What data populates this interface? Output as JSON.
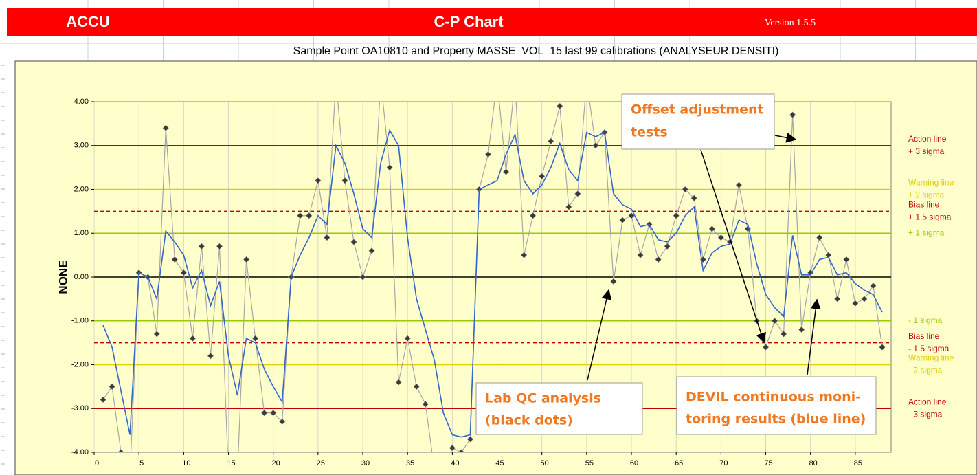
{
  "header": {
    "left": "ACCU",
    "title": "C-P Chart",
    "version": "Version 1.5.5"
  },
  "chart_data": {
    "type": "line",
    "subtitle": "Sample Point OA10810 and Property MASSE_VOL_15 last 99 calibrations (ANALYSEUR DENSITI)",
    "y_label": "NONE",
    "x": [
      1,
      2,
      3,
      4,
      5,
      6,
      7,
      8,
      9,
      10,
      11,
      12,
      13,
      14,
      15,
      16,
      17,
      18,
      19,
      20,
      21,
      22,
      23,
      24,
      25,
      26,
      27,
      28,
      29,
      30,
      31,
      32,
      33,
      34,
      35,
      36,
      37,
      38,
      39,
      40,
      41,
      42,
      43,
      44,
      45,
      46,
      47,
      48,
      49,
      50,
      51,
      52,
      53,
      54,
      55,
      56,
      57,
      58,
      59,
      60,
      61,
      62,
      63,
      64,
      65,
      66,
      67,
      68,
      69,
      70,
      71,
      72,
      73,
      74,
      75,
      76,
      77,
      78,
      79,
      80,
      81,
      82,
      83,
      84,
      85,
      86,
      87,
      88
    ],
    "series": [
      {
        "color": "#a6a6a6",
        "marker_color": "#3a3a3a",
        "values": [
          -2.8,
          -2.5,
          -4.0,
          -4.5,
          0.1,
          0.0,
          -1.3,
          3.4,
          0.4,
          0.1,
          -1.4,
          0.7,
          -1.8,
          0.7,
          -4.5,
          -4.5,
          0.4,
          -1.4,
          -3.1,
          -3.1,
          -3.3,
          0.0,
          1.4,
          1.4,
          2.2,
          0.9,
          4.5,
          2.2,
          0.8,
          0.0,
          0.6,
          4.5,
          2.5,
          -2.4,
          -1.4,
          -2.5,
          -2.9,
          -4.4,
          -4.4,
          -3.9,
          -4.0,
          -3.7,
          2.0,
          2.8,
          4.5,
          2.4,
          4.5,
          0.5,
          1.4,
          2.3,
          3.1,
          3.9,
          1.6,
          1.9,
          4.5,
          3.0,
          3.3,
          -0.1,
          1.3,
          1.4,
          0.5,
          1.2,
          0.4,
          0.7,
          1.4,
          2.0,
          1.8,
          0.4,
          1.1,
          0.9,
          0.8,
          2.1,
          1.1,
          -1.0,
          -1.6,
          -1.0,
          -1.3,
          3.7,
          -1.2,
          0.1,
          0.9,
          0.5,
          -0.5,
          0.4,
          -0.6,
          -0.5,
          -0.2,
          -1.6
        ]
      },
      {
        "color": "#3366cc",
        "values": [
          -1.1,
          -1.6,
          -2.6,
          -3.6,
          0.1,
          0.0,
          -0.5,
          1.05,
          0.8,
          0.5,
          -0.25,
          0.15,
          -0.65,
          -0.1,
          -1.8,
          -2.7,
          -1.4,
          -1.5,
          -2.1,
          -2.5,
          -2.85,
          0.0,
          0.5,
          0.9,
          1.4,
          1.2,
          3.0,
          2.6,
          1.9,
          1.1,
          0.9,
          2.6,
          3.35,
          3.0,
          0.9,
          -0.5,
          -1.2,
          -1.9,
          -3.1,
          -3.6,
          -3.65,
          -3.6,
          2.0,
          2.1,
          2.2,
          2.8,
          3.25,
          2.2,
          1.9,
          2.1,
          2.5,
          3.05,
          2.45,
          2.2,
          3.3,
          3.2,
          3.3,
          1.9,
          1.65,
          1.55,
          1.15,
          1.2,
          0.85,
          0.8,
          1.0,
          1.4,
          1.6,
          0.15,
          0.55,
          0.7,
          0.75,
          1.3,
          1.2,
          0.3,
          -0.4,
          -0.7,
          -0.9,
          0.95,
          0.05,
          0.05,
          0.4,
          0.45,
          0.05,
          0.1,
          -0.15,
          -0.3,
          -0.4,
          -0.8
        ]
      }
    ],
    "xlim": [
      0,
      89
    ],
    "ylim": [
      -4,
      4
    ],
    "xticks": [
      0,
      5,
      10,
      15,
      20,
      25,
      30,
      35,
      40,
      45,
      50,
      55,
      60,
      65,
      70,
      75,
      80,
      85
    ],
    "yticks": [
      {
        "value": -4,
        "label": "-4.00"
      },
      {
        "value": -3,
        "label": "-3.00"
      },
      {
        "value": -2,
        "label": "-2.00"
      },
      {
        "value": -1,
        "label": "-1.00"
      },
      {
        "value": 0,
        "label": "0.00"
      },
      {
        "value": 1,
        "label": "1.00"
      },
      {
        "value": 2,
        "label": "2.00"
      },
      {
        "value": 3,
        "label": "3.00"
      },
      {
        "value": 4,
        "label": "4.00"
      }
    ],
    "grid": true,
    "reference_lines": [
      {
        "value": 3,
        "color": "#c00000",
        "dashed": false,
        "label": [
          "Action line",
          "+ 3 sigma"
        ]
      },
      {
        "value": 2,
        "color": "#e0cc00",
        "dashed": false,
        "label": [
          "Warning line",
          "+ 2 sigma"
        ]
      },
      {
        "value": 1.5,
        "color": "#c00000",
        "dashed": true,
        "label": [
          "Bias line",
          "+ 1.5 sigma"
        ]
      },
      {
        "value": 1,
        "color": "#99cc00",
        "dashed": false,
        "label": [
          "+ 1 sigma"
        ]
      },
      {
        "value": 0,
        "color": "#000000",
        "dashed": false,
        "label": []
      },
      {
        "value": -1,
        "color": "#99cc00",
        "dashed": false,
        "label": [
          "- 1 sigma"
        ]
      },
      {
        "value": -1.5,
        "color": "#c00000",
        "dashed": true,
        "label": [
          "Bias line",
          "- 1.5 sigma"
        ]
      },
      {
        "value": -2,
        "color": "#e0cc00",
        "dashed": false,
        "label": [
          "Warning line",
          "- 2 sigma"
        ]
      },
      {
        "value": -3,
        "color": "#c00000",
        "dashed": false,
        "label": [
          "Action line",
          "- 3 sigma"
        ]
      }
    ],
    "annotations": [
      {
        "lines": [
          "Offset adjustment",
          "tests"
        ]
      },
      {
        "lines": [
          "Lab QC analysis",
          "(black dots)"
        ]
      },
      {
        "lines": [
          "DEVIL continuous moni-",
          "toring results (blue line)"
        ]
      }
    ]
  }
}
